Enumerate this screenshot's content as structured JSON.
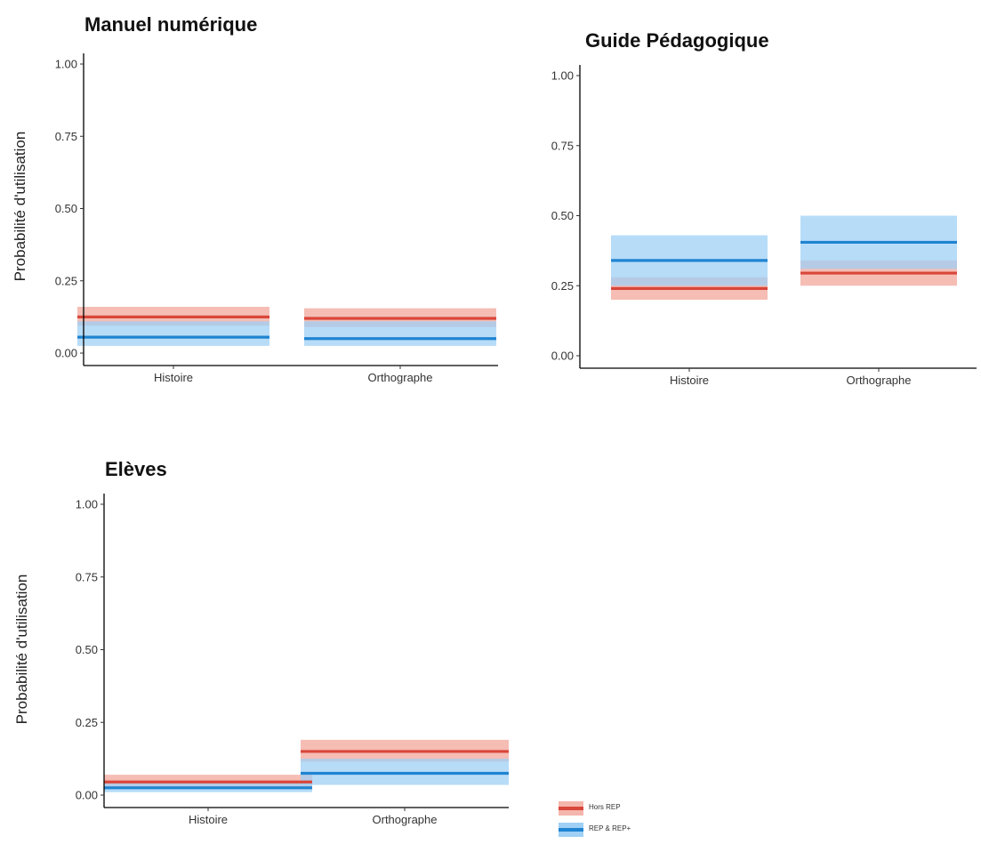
{
  "colors": {
    "hors_rep_band": "#f4b6ac",
    "hors_rep_line": "#d9463a",
    "rep_band": "#9fd0f5",
    "rep_line": "#1f84d1",
    "axis": "#000000"
  },
  "legend": {
    "items": [
      {
        "label": "Hors REP",
        "series": "hors_rep"
      },
      {
        "label": "REP & REP+",
        "series": "rep"
      }
    ]
  },
  "chart_data": [
    {
      "type": "crossbar",
      "title": "Manuel numérique",
      "ylabel": "Probabilité d'utilisation",
      "xlabel": "",
      "categories": [
        "Histoire",
        "Orthographe"
      ],
      "ylim": [
        0,
        1
      ],
      "yticks": [
        "0.00",
        "0.25",
        "0.50",
        "0.75",
        "1.00"
      ],
      "series": [
        {
          "name": "Hors REP",
          "key": "hors_rep",
          "values": [
            0.125,
            0.12
          ],
          "lower": [
            0.095,
            0.09
          ],
          "upper": [
            0.16,
            0.155
          ]
        },
        {
          "name": "REP & REP+",
          "key": "rep",
          "values": [
            0.055,
            0.05
          ],
          "lower": [
            0.025,
            0.025
          ],
          "upper": [
            0.11,
            0.11
          ]
        }
      ]
    },
    {
      "type": "crossbar",
      "title": "Guide Pédagogique",
      "ylabel": "",
      "xlabel": "",
      "categories": [
        "Histoire",
        "Orthographe"
      ],
      "ylim": [
        0,
        1
      ],
      "yticks": [
        "0.00",
        "0.25",
        "0.50",
        "0.75",
        "1.00"
      ],
      "series": [
        {
          "name": "Hors REP",
          "key": "hors_rep",
          "values": [
            0.24,
            0.295
          ],
          "lower": [
            0.2,
            0.25
          ],
          "upper": [
            0.28,
            0.34
          ]
        },
        {
          "name": "REP & REP+",
          "key": "rep",
          "values": [
            0.34,
            0.405
          ],
          "lower": [
            0.25,
            0.31
          ],
          "upper": [
            0.43,
            0.5
          ]
        }
      ]
    },
    {
      "type": "crossbar",
      "title": "Elèves",
      "ylabel": "Probabilité d'utilisation",
      "xlabel": "",
      "categories": [
        "Histoire",
        "Orthographe"
      ],
      "ylim": [
        0,
        1
      ],
      "yticks": [
        "0.00",
        "0.25",
        "0.50",
        "0.75",
        "1.00"
      ],
      "series": [
        {
          "name": "Hors REP",
          "key": "hors_rep",
          "values": [
            0.045,
            0.15
          ],
          "lower": [
            0.025,
            0.115
          ],
          "upper": [
            0.07,
            0.19
          ]
        },
        {
          "name": "REP & REP+",
          "key": "rep",
          "values": [
            0.025,
            0.075
          ],
          "lower": [
            0.01,
            0.035
          ],
          "upper": [
            0.045,
            0.125
          ]
        }
      ]
    }
  ]
}
